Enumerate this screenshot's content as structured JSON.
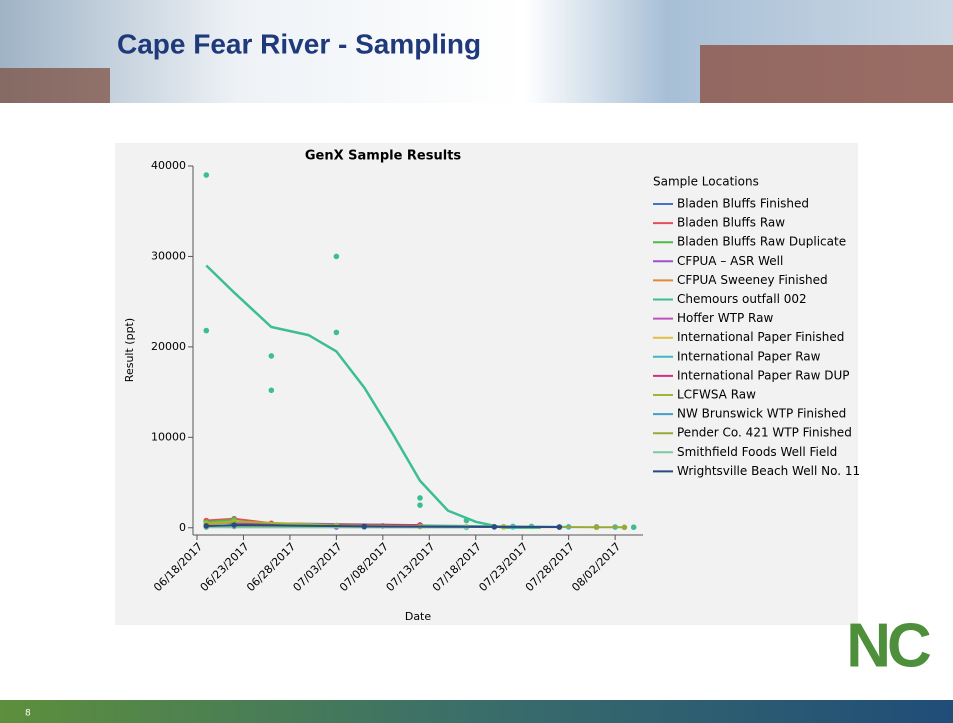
{
  "slide_title": "Cape Fear River - Sampling",
  "page_number": "8",
  "logo_text": "NC",
  "chart_data": {
    "type": "scatter",
    "title": "GenX Sample Results",
    "x_label": "Date",
    "y_label": "Result (ppt)",
    "legend_title": "Sample Locations",
    "legend": "right",
    "xlim": [
      "06/18/2017",
      "08/05/2017"
    ],
    "xticks": [
      "06/18/2017",
      "06/23/2017",
      "06/28/2017",
      "07/03/2017",
      "07/08/2017",
      "07/13/2017",
      "07/18/2017",
      "07/23/2017",
      "07/28/2017",
      "08/02/2017"
    ],
    "ylim": [
      -800,
      40000
    ],
    "yticks": [
      0,
      10000,
      20000,
      30000,
      40000
    ],
    "series": [
      {
        "name": "Bladen Bluffs Finished",
        "color": "#4472c4",
        "x": [
          "06/19/2017",
          "06/22/2017",
          "06/26/2017",
          "07/03/2017",
          "07/08/2017"
        ],
        "values": [
          700,
          500,
          350,
          250,
          200
        ]
      },
      {
        "name": "Bladen Bluffs Raw",
        "color": "#e0505a",
        "x": [
          "06/19/2017",
          "06/22/2017",
          "06/26/2017",
          "07/12/2017"
        ],
        "values": [
          800,
          1000,
          500,
          300
        ]
      },
      {
        "name": "Bladen Bluffs Raw Duplicate",
        "color": "#4cbb4c",
        "x": [
          "06/19/2017",
          "06/22/2017"
        ],
        "values": [
          600,
          900
        ]
      },
      {
        "name": "CFPUA – ASR Well",
        "color": "#a050d0",
        "x": [
          "06/19/2017",
          "07/03/2017",
          "07/17/2017"
        ],
        "values": [
          100,
          80,
          60
        ]
      },
      {
        "name": "CFPUA Sweeney Finished",
        "color": "#e08a3c",
        "x": [
          "06/19/2017",
          "06/22/2017",
          "06/26/2017"
        ],
        "values": [
          400,
          600,
          300
        ]
      },
      {
        "name": "Chemours outfall 002",
        "color": "#3dbd93",
        "x": [
          "06/19/2017",
          "06/19/2017",
          "06/26/2017",
          "06/26/2017",
          "07/03/2017",
          "07/03/2017",
          "07/12/2017",
          "07/12/2017",
          "07/17/2017",
          "07/22/2017",
          "07/24/2017",
          "07/31/2017",
          "08/02/2017",
          "08/04/2017"
        ],
        "values": [
          39000,
          21800,
          19000,
          15200,
          30000,
          21600,
          3300,
          2500,
          800,
          100,
          150,
          100,
          80,
          60
        ],
        "fit_x": [
          "06/19/2017",
          "06/22/2017",
          "06/26/2017",
          "06/30/2017",
          "07/03/2017",
          "07/06/2017",
          "07/09/2017",
          "07/12/2017",
          "07/15/2017",
          "07/18/2017",
          "07/21/2017",
          "07/25/2017"
        ],
        "fit": [
          29000,
          26000,
          22200,
          21300,
          19500,
          15500,
          10500,
          5200,
          1900,
          660,
          0,
          0
        ]
      },
      {
        "name": "Hoffer WTP Raw",
        "color": "#c050c0",
        "x": [
          "06/22/2017",
          "07/03/2017",
          "07/12/2017"
        ],
        "values": [
          300,
          200,
          150
        ]
      },
      {
        "name": "International Paper Finished",
        "color": "#e0c040",
        "x": [
          "06/22/2017",
          "07/17/2017",
          "07/27/2017"
        ],
        "values": [
          200,
          100,
          50
        ]
      },
      {
        "name": "International Paper Raw",
        "color": "#40b8c0",
        "x": [
          "06/22/2017",
          "07/22/2017",
          "07/28/2017"
        ],
        "values": [
          500,
          150,
          100
        ]
      },
      {
        "name": "International Paper Raw DUP",
        "color": "#d03080",
        "x": [
          "06/22/2017",
          "07/12/2017"
        ],
        "values": [
          400,
          300
        ]
      },
      {
        "name": "LCFWSA Raw",
        "color": "#9cb830",
        "x": [
          "06/19/2017",
          "06/22/2017",
          "07/03/2017",
          "07/21/2017"
        ],
        "values": [
          500,
          700,
          250,
          100
        ]
      },
      {
        "name": "NW Brunswick WTP Finished",
        "color": "#40a0c8",
        "x": [
          "06/22/2017",
          "07/06/2017",
          "07/27/2017"
        ],
        "values": [
          150,
          100,
          80
        ]
      },
      {
        "name": "Pender Co. 421 WTP Finished",
        "color": "#9aa838",
        "x": [
          "06/22/2017",
          "07/12/2017",
          "07/31/2017",
          "08/03/2017"
        ],
        "values": [
          200,
          150,
          60,
          50
        ]
      },
      {
        "name": "Smithfield Foods Well Field",
        "color": "#80c8a0",
        "x": [
          "06/19/2017",
          "07/17/2017"
        ],
        "values": [
          50,
          40
        ]
      },
      {
        "name": "Wrightsville Beach Well No. 11",
        "color": "#2a4a80",
        "x": [
          "06/19/2017",
          "06/22/2017",
          "07/06/2017",
          "07/20/2017",
          "07/27/2017"
        ],
        "values": [
          200,
          300,
          150,
          100,
          80
        ]
      }
    ]
  }
}
